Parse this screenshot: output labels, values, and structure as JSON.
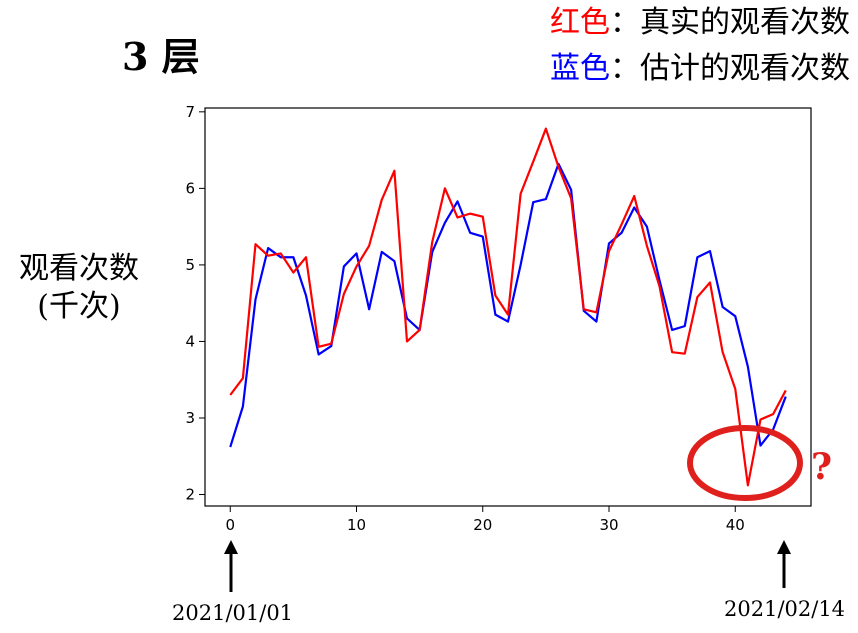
{
  "title": "3 层",
  "legend": [
    {
      "color_word": "红色",
      "sep": "：",
      "text": "真实的观看次数",
      "color": "#ff0000"
    },
    {
      "color_word": "蓝色",
      "sep": "：",
      "text": "估计的观看次数",
      "color": "#0000ff"
    }
  ],
  "ylabel_line1": "观看次数",
  "ylabel_line2": "(千次)",
  "date_start": "2021/01/01",
  "date_end": "2021/02/14",
  "annotation_mark": "?",
  "annotation_color": "#e0201c",
  "chart_data": {
    "type": "line",
    "xlim": [
      -2,
      46
    ],
    "ylim": [
      1.85,
      7.05
    ],
    "x_ticks": [
      0,
      10,
      20,
      30,
      40
    ],
    "y_ticks": [
      2,
      3,
      4,
      5,
      6,
      7
    ],
    "x": [
      0,
      1,
      2,
      3,
      4,
      5,
      6,
      7,
      8,
      9,
      10,
      11,
      12,
      13,
      14,
      15,
      16,
      17,
      18,
      19,
      20,
      21,
      22,
      23,
      24,
      25,
      26,
      27,
      28,
      29,
      30,
      31,
      32,
      33,
      34,
      35,
      36,
      37,
      38,
      39,
      40,
      41,
      42,
      43,
      44
    ],
    "series": [
      {
        "color": "#ff0000",
        "values": [
          3.3,
          3.52,
          5.27,
          5.12,
          5.15,
          4.9,
          5.1,
          3.93,
          3.97,
          4.62,
          4.98,
          5.25,
          5.85,
          6.23,
          4.0,
          4.15,
          5.3,
          6.0,
          5.62,
          5.67,
          5.63,
          4.6,
          4.35,
          5.93,
          6.35,
          6.78,
          6.28,
          5.87,
          4.42,
          4.38,
          5.18,
          5.53,
          5.9,
          5.25,
          4.72,
          3.86,
          3.84,
          4.58,
          4.77,
          3.86,
          3.38,
          2.12,
          2.98,
          3.05,
          3.36
        ]
      },
      {
        "color": "#0000ff",
        "values": [
          2.62,
          3.15,
          4.55,
          5.22,
          5.1,
          5.1,
          4.6,
          3.83,
          3.94,
          4.98,
          5.15,
          4.42,
          5.17,
          5.05,
          4.3,
          4.15,
          5.17,
          5.55,
          5.83,
          5.42,
          5.37,
          4.35,
          4.26,
          5.0,
          5.82,
          5.86,
          6.32,
          5.98,
          4.4,
          4.26,
          5.28,
          5.42,
          5.75,
          5.5,
          4.8,
          4.15,
          4.2,
          5.1,
          5.18,
          4.45,
          4.33,
          3.67,
          2.64,
          2.85,
          3.28
        ]
      }
    ]
  }
}
